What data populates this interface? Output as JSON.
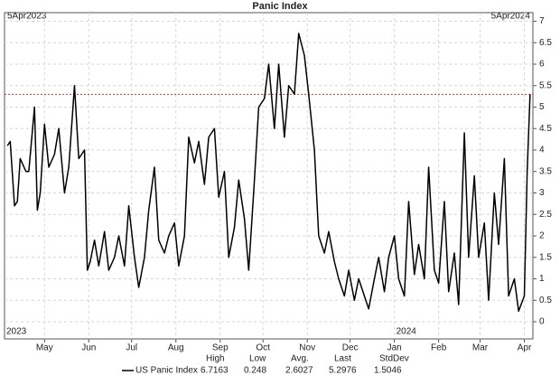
{
  "chart_data": {
    "type": "line",
    "title": "Panic Index",
    "start_label": "5Apr2023",
    "end_label": "5Apr2024",
    "year_labels": [
      {
        "text": "2023",
        "x": "2023-04-03"
      },
      {
        "text": "2024",
        "x": "2024-01-01"
      }
    ],
    "x": [
      "2023-04-05",
      "2023-04-07",
      "2023-04-10",
      "2023-04-12",
      "2023-04-14",
      "2023-04-18",
      "2023-04-20",
      "2023-04-24",
      "2023-04-26",
      "2023-04-28",
      "2023-05-01",
      "2023-05-04",
      "2023-05-08",
      "2023-05-11",
      "2023-05-15",
      "2023-05-18",
      "2023-05-22",
      "2023-05-25",
      "2023-05-29",
      "2023-05-31",
      "2023-06-02",
      "2023-06-05",
      "2023-06-08",
      "2023-06-12",
      "2023-06-15",
      "2023-06-19",
      "2023-06-22",
      "2023-06-26",
      "2023-06-29",
      "2023-07-03",
      "2023-07-06",
      "2023-07-10",
      "2023-07-13",
      "2023-07-17",
      "2023-07-20",
      "2023-07-24",
      "2023-07-27",
      "2023-07-31",
      "2023-08-03",
      "2023-08-07",
      "2023-08-10",
      "2023-08-14",
      "2023-08-17",
      "2023-08-21",
      "2023-08-24",
      "2023-08-28",
      "2023-08-31",
      "2023-09-04",
      "2023-09-07",
      "2023-09-11",
      "2023-09-14",
      "2023-09-18",
      "2023-09-21",
      "2023-09-25",
      "2023-09-28",
      "2023-10-02",
      "2023-10-05",
      "2023-10-09",
      "2023-10-12",
      "2023-10-16",
      "2023-10-19",
      "2023-10-23",
      "2023-10-26",
      "2023-10-30",
      "2023-11-02",
      "2023-11-06",
      "2023-11-09",
      "2023-11-13",
      "2023-11-16",
      "2023-11-20",
      "2023-11-23",
      "2023-11-27",
      "2023-11-30",
      "2023-12-04",
      "2023-12-07",
      "2023-12-11",
      "2023-12-14",
      "2023-12-18",
      "2023-12-21",
      "2023-12-25",
      "2023-12-28",
      "2024-01-01",
      "2024-01-04",
      "2024-01-08",
      "2024-01-11",
      "2024-01-15",
      "2024-01-18",
      "2024-01-22",
      "2024-01-25",
      "2024-01-29",
      "2024-02-01",
      "2024-02-05",
      "2024-02-08",
      "2024-02-12",
      "2024-02-15",
      "2024-02-19",
      "2024-02-22",
      "2024-02-26",
      "2024-02-29",
      "2024-03-04",
      "2024-03-07",
      "2024-03-11",
      "2024-03-14",
      "2024-03-18",
      "2024-03-21",
      "2024-03-25",
      "2024-03-28",
      "2024-04-01",
      "2024-04-03",
      "2024-04-05"
    ],
    "series": [
      {
        "name": "US Panic Index",
        "color": "#000000",
        "values": [
          4.1,
          4.2,
          2.7,
          2.8,
          3.8,
          3.5,
          3.5,
          5.0,
          2.6,
          3.0,
          4.6,
          3.6,
          3.9,
          4.5,
          3.0,
          3.6,
          5.5,
          3.8,
          4.0,
          1.2,
          1.4,
          1.9,
          1.3,
          2.1,
          1.2,
          1.5,
          2.0,
          1.3,
          2.7,
          1.5,
          0.8,
          1.5,
          2.6,
          3.6,
          1.9,
          1.6,
          2.0,
          2.3,
          1.3,
          2.0,
          4.3,
          3.7,
          4.2,
          3.2,
          4.3,
          4.5,
          2.9,
          3.5,
          1.5,
          2.2,
          3.3,
          2.4,
          1.2,
          3.3,
          5.0,
          5.2,
          6.0,
          4.5,
          6.0,
          4.3,
          5.5,
          5.3,
          6.7163,
          6.2,
          5.3,
          4.0,
          2.0,
          1.6,
          2.1,
          1.4,
          1.0,
          0.6,
          1.2,
          0.5,
          1.0,
          0.6,
          0.3,
          1.0,
          1.5,
          0.7,
          1.5,
          2.0,
          1.0,
          0.6,
          2.8,
          1.1,
          1.8,
          1.0,
          3.6,
          1.2,
          0.9,
          2.8,
          0.7,
          1.6,
          0.4,
          4.4,
          1.5,
          3.4,
          1.5,
          2.3,
          0.5,
          3.0,
          1.8,
          3.8,
          0.6,
          1.0,
          0.248,
          0.6,
          3.5,
          5.2976
        ]
      }
    ],
    "reference_line": {
      "value": 5.2976,
      "color": "#c0392b"
    },
    "xlim": [
      "2023-04-03",
      "2024-04-07"
    ],
    "xticks": [
      {
        "value": "2023-05-01",
        "label": "May"
      },
      {
        "value": "2023-06-01",
        "label": "Jun"
      },
      {
        "value": "2023-07-01",
        "label": "Jul"
      },
      {
        "value": "2023-08-01",
        "label": "Aug"
      },
      {
        "value": "2023-09-01",
        "label": "Sep"
      },
      {
        "value": "2023-10-01",
        "label": "Oct"
      },
      {
        "value": "2023-11-01",
        "label": "Nov"
      },
      {
        "value": "2023-12-01",
        "label": "Dec"
      },
      {
        "value": "2024-01-01",
        "label": "Jan"
      },
      {
        "value": "2024-02-01",
        "label": "Feb"
      },
      {
        "value": "2024-03-01",
        "label": "Mar"
      },
      {
        "value": "2024-04-01",
        "label": "Apr"
      }
    ],
    "ylim": [
      -0.4,
      7.2
    ],
    "yticks": [
      0,
      0.5,
      1,
      1.5,
      2,
      2.5,
      3,
      3.5,
      4,
      4.5,
      5,
      5.5,
      6,
      6.5,
      7
    ],
    "grid": true,
    "stats": [
      {
        "label": "High",
        "value": 6.7163
      },
      {
        "label": "Low",
        "value": 0.248
      },
      {
        "label": "Avg.",
        "value": 2.6027
      },
      {
        "label": "Last",
        "value": 5.2976
      },
      {
        "label": "StdDev",
        "value": 1.5046
      }
    ]
  }
}
